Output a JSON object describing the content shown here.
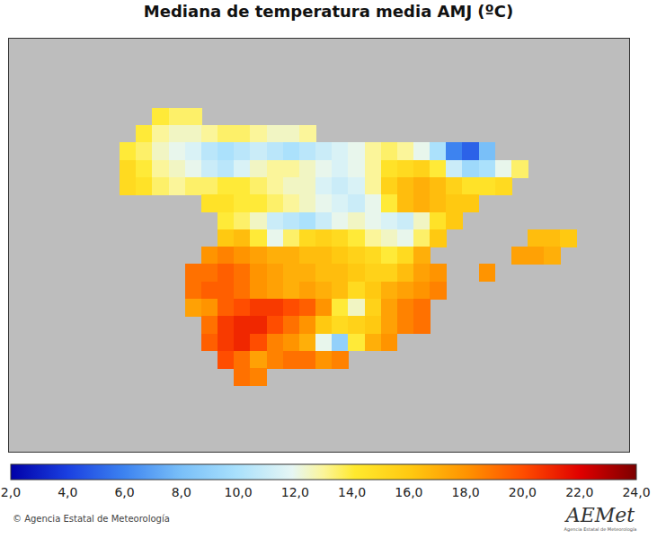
{
  "chart_data": {
    "type": "heatmap",
    "title": "Mediana de temperatura media AMJ (ºC)",
    "tick_labels": false,
    "xlim": [
      -12.9,
      6.1
    ],
    "ylim": [
      34.1,
      46.0
    ],
    "heatmap": {
      "x": [
        -9.25,
        -8.75,
        -8.25,
        -7.75,
        -7.25,
        -6.75,
        -6.25,
        -5.75,
        -5.25,
        -4.75,
        -4.25,
        -3.75,
        -3.25,
        -2.75,
        -2.25,
        -1.75,
        -1.25,
        -0.75,
        -0.25,
        0.25,
        0.75,
        1.25,
        1.75,
        2.25,
        2.75,
        3.25,
        3.75,
        4.25
      ],
      "y": [
        43.75,
        43.25,
        42.75,
        42.25,
        41.75,
        41.25,
        40.75,
        40.25,
        39.75,
        39.25,
        38.75,
        38.25,
        37.75,
        37.25,
        36.75,
        36.25
      ],
      "cells": [
        [
          null,
          null,
          14,
          13.5,
          13.5,
          null,
          null,
          null,
          null,
          null,
          null,
          null,
          null,
          null,
          null,
          null,
          null,
          null,
          null,
          null,
          null,
          null,
          null,
          null,
          null,
          null,
          null,
          null
        ],
        [
          null,
          14,
          13,
          12.5,
          12.5,
          13,
          13.5,
          13.5,
          13,
          12.5,
          12.5,
          13,
          null,
          null,
          null,
          null,
          null,
          null,
          null,
          null,
          null,
          null,
          null,
          null,
          null,
          null,
          null,
          null
        ],
        [
          14,
          13.5,
          12.5,
          12,
          11.5,
          10.5,
          10,
          10.5,
          11,
          10.5,
          10,
          10.5,
          11,
          11.5,
          12,
          13,
          13.5,
          13,
          12,
          10,
          6,
          5,
          8,
          null,
          null,
          null,
          null,
          null
        ],
        [
          15,
          14,
          13,
          12.5,
          12,
          11,
          10.5,
          11.5,
          12.5,
          13,
          13,
          12.5,
          12,
          11.5,
          12,
          13,
          14.5,
          15,
          15.5,
          14,
          11,
          9.5,
          10,
          12,
          13.5,
          null,
          null,
          null
        ],
        [
          15,
          14.5,
          13.5,
          13,
          13.5,
          13.5,
          14,
          14,
          13.5,
          13,
          12.5,
          12.5,
          11.5,
          11,
          11.5,
          13,
          15.5,
          16.5,
          17,
          16.5,
          15.5,
          14.5,
          14.5,
          15,
          null,
          null,
          null,
          null
        ],
        [
          null,
          null,
          null,
          null,
          null,
          14.5,
          14.5,
          14,
          14,
          13.5,
          13,
          12.5,
          12,
          11.5,
          11,
          12,
          14,
          16.5,
          17,
          16.5,
          16,
          16,
          null,
          null,
          null,
          null,
          null,
          null
        ],
        [
          null,
          null,
          null,
          null,
          null,
          null,
          14,
          13.5,
          12.5,
          11,
          10.5,
          10,
          11,
          12,
          12.5,
          12,
          11.5,
          11,
          12.5,
          14.5,
          16,
          null,
          null,
          null,
          null,
          null,
          null,
          null
        ],
        [
          null,
          null,
          null,
          null,
          null,
          null,
          16,
          16.5,
          14,
          12,
          13.5,
          15,
          15.5,
          15,
          14,
          13,
          12.5,
          12,
          13.5,
          16,
          null,
          null,
          null,
          null,
          null,
          16.5,
          16.5,
          16
        ],
        [
          null,
          null,
          null,
          null,
          null,
          18,
          18.5,
          18,
          17.5,
          17,
          17,
          16.5,
          16.5,
          16,
          15.5,
          15,
          14,
          15,
          17,
          null,
          null,
          null,
          null,
          null,
          17.5,
          17.5,
          17,
          null
        ],
        [
          null,
          null,
          null,
          null,
          19,
          19,
          19.5,
          19,
          18,
          17.5,
          17,
          17,
          16.5,
          16.5,
          16,
          15.5,
          15.5,
          16.5,
          17.5,
          18,
          null,
          null,
          18,
          null,
          null,
          null,
          null,
          null
        ],
        [
          null,
          null,
          null,
          null,
          19,
          19.5,
          19.5,
          19,
          18,
          17.5,
          17,
          17.5,
          17,
          16.5,
          15,
          16,
          17,
          17.5,
          18,
          18.5,
          null,
          null,
          null,
          null,
          null,
          null,
          null,
          null
        ],
        [
          null,
          null,
          null,
          null,
          17.5,
          18,
          19.5,
          20,
          20.5,
          20.5,
          20,
          19.5,
          18,
          14,
          12.5,
          15.5,
          17.5,
          18.5,
          19,
          null,
          null,
          null,
          null,
          null,
          null,
          null,
          null,
          null
        ],
        [
          null,
          null,
          null,
          null,
          null,
          19,
          20.5,
          21,
          21,
          20,
          19,
          18,
          16,
          15,
          15.5,
          16,
          17.5,
          18.5,
          19,
          null,
          null,
          null,
          null,
          null,
          null,
          null,
          null,
          null
        ],
        [
          null,
          null,
          null,
          null,
          null,
          19.5,
          20.5,
          21,
          20,
          18.5,
          18,
          17,
          12,
          9,
          14,
          17,
          18,
          null,
          null,
          null,
          null,
          null,
          null,
          null,
          null,
          null,
          null,
          null
        ],
        [
          null,
          null,
          null,
          null,
          null,
          null,
          20,
          19,
          17.5,
          18.5,
          19,
          19,
          18,
          18.5,
          null,
          null,
          null,
          null,
          null,
          null,
          null,
          null,
          null,
          null,
          null,
          null,
          null,
          null
        ],
        [
          null,
          null,
          null,
          null,
          null,
          null,
          null,
          19,
          18.5,
          null,
          null,
          null,
          null,
          null,
          null,
          null,
          null,
          null,
          null,
          null,
          null,
          null,
          null,
          null,
          null,
          null,
          null,
          null
        ]
      ]
    },
    "colorbar": {
      "range": [
        2,
        24
      ],
      "ticks": [
        {
          "value": 2,
          "label": "2,0"
        },
        {
          "value": 4,
          "label": "4,0"
        },
        {
          "value": 6,
          "label": "6,0"
        },
        {
          "value": 8,
          "label": "8,0"
        },
        {
          "value": 10,
          "label": "10,0"
        },
        {
          "value": 12,
          "label": "12,0"
        },
        {
          "value": 14,
          "label": "14,0"
        },
        {
          "value": 16,
          "label": "16,0"
        },
        {
          "value": 18,
          "label": "18,0"
        },
        {
          "value": 20,
          "label": "20,0"
        },
        {
          "value": 22,
          "label": "22,0"
        },
        {
          "value": 24,
          "label": "24,0"
        }
      ]
    },
    "credit": "© Agencia Estatal de Meteorología",
    "logo": "AEMet",
    "logo_caption": "Agencia Estatal de Meteorología"
  }
}
